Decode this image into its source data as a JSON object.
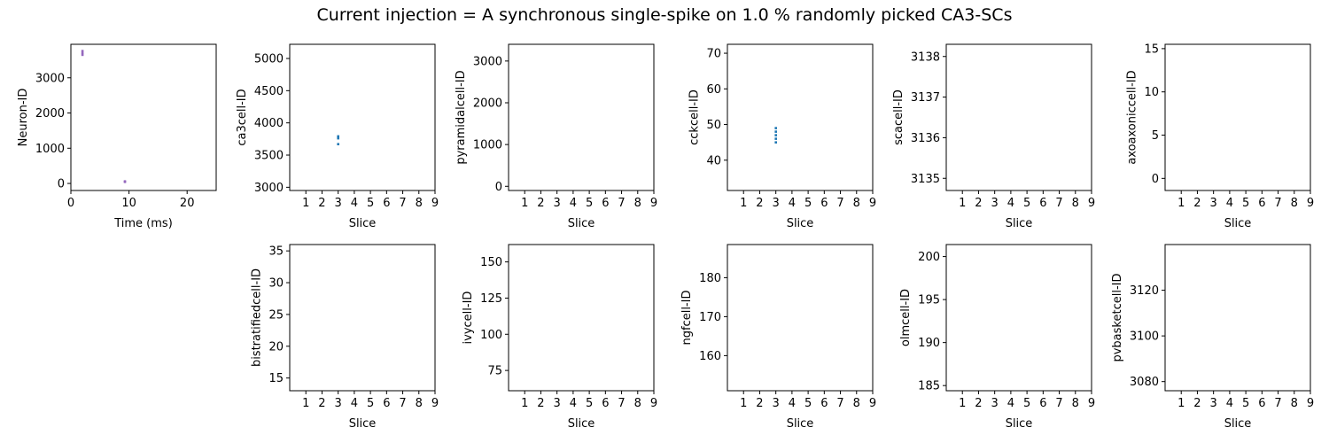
{
  "figure": {
    "title": "Current injection = A synchronous single-spike on 1.0 % randomly picked CA3-SCs"
  },
  "chart_data": [
    {
      "type": "scatter",
      "id": "overview",
      "xlabel": "Time (ms)",
      "ylabel": "Neuron-ID",
      "xlim": [
        0,
        25
      ],
      "ylim": [
        -200,
        3950
      ],
      "xticks": [
        0,
        10,
        20
      ],
      "yticks": [
        0,
        1000,
        2000,
        3000
      ],
      "series": [
        {
          "color": "#9467bd",
          "points": [
            [
              2,
              3760
            ],
            [
              2,
              3700
            ],
            [
              2,
              3650
            ],
            [
              9.3,
              60
            ],
            [
              9.3,
              45
            ]
          ]
        }
      ]
    },
    {
      "type": "scatter",
      "id": "ca3",
      "xlabel": "Slice",
      "ylabel": "ca3cell-ID",
      "xlim": [
        0,
        9
      ],
      "ylim": [
        2950,
        5220
      ],
      "xticks": [
        1,
        2,
        3,
        4,
        5,
        6,
        7,
        8,
        9
      ],
      "yticks": [
        3000,
        3500,
        4000,
        4500,
        5000
      ],
      "series": [
        {
          "color": "#1f77b4",
          "points": [
            [
              3,
              3790
            ],
            [
              3,
              3760
            ],
            [
              3,
              3670
            ]
          ]
        }
      ]
    },
    {
      "type": "scatter",
      "id": "pyramidal",
      "xlabel": "Slice",
      "ylabel": "pyramidalcell-ID",
      "xlim": [
        0,
        9
      ],
      "ylim": [
        -100,
        3400
      ],
      "xticks": [
        1,
        2,
        3,
        4,
        5,
        6,
        7,
        8,
        9
      ],
      "yticks": [
        0,
        1000,
        2000,
        3000
      ],
      "series": []
    },
    {
      "type": "scatter",
      "id": "cck",
      "xlabel": "Slice",
      "ylabel": "cckcell-ID",
      "xlim": [
        0,
        9
      ],
      "ylim": [
        31.5,
        72.5
      ],
      "xticks": [
        1,
        2,
        3,
        4,
        5,
        6,
        7,
        8,
        9
      ],
      "yticks": [
        40,
        50,
        60,
        70
      ],
      "series": [
        {
          "color": "#1f77b4",
          "points": [
            [
              3,
              49
            ],
            [
              3,
              48
            ],
            [
              3,
              47
            ],
            [
              3,
              46
            ],
            [
              3,
              45
            ]
          ]
        }
      ]
    },
    {
      "type": "scatter",
      "id": "sca",
      "xlabel": "Slice",
      "ylabel": "scacell-ID",
      "xlim": [
        0,
        9
      ],
      "ylim": [
        3134.7,
        3138.3
      ],
      "xticks": [
        1,
        2,
        3,
        4,
        5,
        6,
        7,
        8,
        9
      ],
      "yticks": [
        3135,
        3136,
        3137,
        3138
      ],
      "series": []
    },
    {
      "type": "scatter",
      "id": "axoaxonic",
      "xlabel": "Slice",
      "ylabel": "axoaxoniccell-ID",
      "xlim": [
        0,
        9
      ],
      "ylim": [
        -1.4,
        15.5
      ],
      "xticks": [
        1,
        2,
        3,
        4,
        5,
        6,
        7,
        8,
        9
      ],
      "yticks": [
        0,
        5,
        10,
        15
      ],
      "series": []
    },
    {
      "type": "scatter",
      "id": "bistratified",
      "xlabel": "Slice",
      "ylabel": "bistratifiedcell-ID",
      "xlim": [
        0,
        9
      ],
      "ylim": [
        13,
        36
      ],
      "xticks": [
        1,
        2,
        3,
        4,
        5,
        6,
        7,
        8,
        9
      ],
      "yticks": [
        15,
        20,
        25,
        30,
        35
      ],
      "series": []
    },
    {
      "type": "scatter",
      "id": "ivy",
      "xlabel": "Slice",
      "ylabel": "ivycell-ID",
      "xlim": [
        0,
        9
      ],
      "ylim": [
        61,
        162
      ],
      "xticks": [
        1,
        2,
        3,
        4,
        5,
        6,
        7,
        8,
        9
      ],
      "yticks": [
        75,
        100,
        125,
        150
      ],
      "series": []
    },
    {
      "type": "scatter",
      "id": "ngf",
      "xlabel": "Slice",
      "ylabel": "ngfcell-ID",
      "xlim": [
        0,
        9
      ],
      "ylim": [
        151,
        188.5
      ],
      "xticks": [
        1,
        2,
        3,
        4,
        5,
        6,
        7,
        8,
        9
      ],
      "yticks": [
        160,
        170,
        180
      ],
      "series": []
    },
    {
      "type": "scatter",
      "id": "olm",
      "xlabel": "Slice",
      "ylabel": "olmcell-ID",
      "xlim": [
        0,
        9
      ],
      "ylim": [
        184.4,
        201.4
      ],
      "xticks": [
        1,
        2,
        3,
        4,
        5,
        6,
        7,
        8,
        9
      ],
      "yticks": [
        185,
        190,
        195,
        200
      ],
      "series": []
    },
    {
      "type": "scatter",
      "id": "pvbasket",
      "xlabel": "Slice",
      "ylabel": "pvbasketcell-ID",
      "xlim": [
        0,
        9
      ],
      "ylim": [
        3076,
        3140
      ],
      "xticks": [
        1,
        2,
        3,
        4,
        5,
        6,
        7,
        8,
        9
      ],
      "yticks": [
        3080,
        3100,
        3120
      ],
      "series": []
    }
  ]
}
